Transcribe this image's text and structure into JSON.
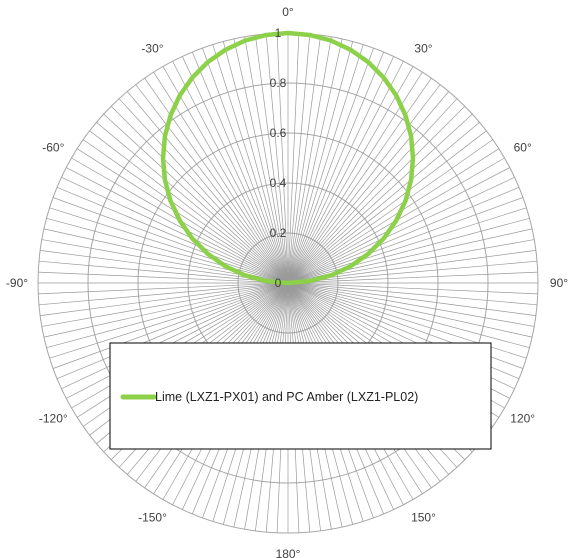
{
  "chart_data": {
    "type": "line",
    "subtype": "polar",
    "title": "",
    "radial_axis": {
      "min": 0,
      "max": 1,
      "ticks": [
        0,
        0.2,
        0.4,
        0.6,
        0.8,
        1
      ],
      "tick_labels": [
        "0",
        "0.2",
        "0.4",
        "0.6",
        "0.8",
        "1"
      ]
    },
    "angular_axis": {
      "unit": "degrees",
      "zero_at": "top",
      "spoke_step_deg": 2.5,
      "ticks": [
        0,
        30,
        60,
        90,
        120,
        150,
        180,
        -150,
        -120,
        -90,
        -60,
        -30
      ],
      "tick_labels": [
        "0°",
        "30°",
        "60°",
        "90°",
        "120°",
        "150°",
        "180°",
        "-150°",
        "-120°",
        "-90°",
        "-60°",
        "-30°"
      ]
    },
    "grid": true,
    "legend": {
      "placement": "lower-center",
      "entries": [
        "Lime (LXZ1-PX01) and PC Amber (LXZ1-PL02)"
      ]
    },
    "series": [
      {
        "name": "Lime (LXZ1-PX01) and PC Amber (LXZ1-PL02)",
        "color": "#8dd14a",
        "angles": [
          -90,
          -85,
          -80,
          -75,
          -70,
          -65,
          -60,
          -55,
          -50,
          -45,
          -40,
          -35,
          -30,
          -25,
          -20,
          -15,
          -10,
          -5,
          0,
          5,
          10,
          15,
          20,
          25,
          30,
          35,
          40,
          45,
          50,
          55,
          60,
          65,
          70,
          75,
          80,
          85,
          90
        ],
        "values": [
          0,
          0.087,
          0.174,
          0.259,
          0.342,
          0.423,
          0.5,
          0.574,
          0.643,
          0.707,
          0.766,
          0.819,
          0.866,
          0.906,
          0.94,
          0.966,
          0.985,
          0.996,
          1,
          0.996,
          0.985,
          0.966,
          0.94,
          0.906,
          0.866,
          0.819,
          0.766,
          0.707,
          0.643,
          0.574,
          0.5,
          0.423,
          0.342,
          0.259,
          0.174,
          0.087,
          0
        ]
      }
    ],
    "colors": {
      "grid_circle": "#a6a6a6",
      "spoke": "#9a9a9a",
      "label": "#404040",
      "legend_border": "#000000"
    }
  }
}
